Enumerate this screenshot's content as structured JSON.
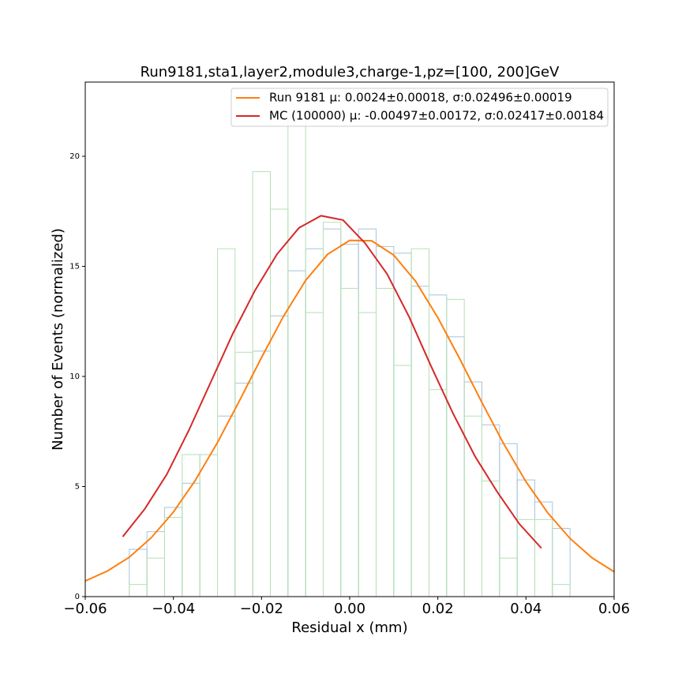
{
  "chart_data": {
    "type": "histogram",
    "title": "Run9181,sta1,layer2,module3,charge-1,pz=[100, 200]GeV",
    "x_label": "Residual x (mm)",
    "y_label": "Number of Events (normalized)",
    "xlim": [
      -0.06,
      0.06
    ],
    "ylim": [
      0,
      23.37
    ],
    "xticks": [
      {
        "value": -0.06,
        "label": "−0.06"
      },
      {
        "value": -0.04,
        "label": "−0.04"
      },
      {
        "value": -0.02,
        "label": "−0.02"
      },
      {
        "value": 0,
        "label": "0.00"
      },
      0.02,
      0.04,
      0.06
    ],
    "yticks": [
      0,
      5,
      10,
      15,
      20
    ],
    "bins": [
      -0.05,
      -0.046,
      -0.042,
      -0.038,
      -0.034,
      -0.03,
      -0.026,
      -0.022,
      -0.018,
      -0.014,
      -0.01,
      -0.006,
      -0.002,
      0.002,
      0.006,
      0.01,
      0.014,
      0.018,
      0.022,
      0.026,
      0.03,
      0.034,
      0.038,
      0.042,
      0.046,
      0.05
    ],
    "histograms": [
      {
        "color": "#a6c4dc",
        "values": [
          2.15,
          2.95,
          4.05,
          5.15,
          6.45,
          8.2,
          9.7,
          11.15,
          12.75,
          14.8,
          15.8,
          16.7,
          16.0,
          16.7,
          15.9,
          15.6,
          14.1,
          13.7,
          11.8,
          9.75,
          7.8,
          6.95,
          5.3,
          4.3,
          3.1
        ]
      },
      {
        "color": "#b4e0b4",
        "values": [
          0.55,
          1.75,
          3.6,
          6.45,
          6.45,
          15.8,
          11.1,
          19.3,
          17.6,
          21.7,
          12.9,
          17.0,
          14.0,
          12.9,
          14.0,
          10.5,
          15.8,
          9.4,
          13.5,
          8.2,
          5.25,
          1.75,
          3.5,
          3.5,
          0.55
        ]
      }
    ],
    "series": [
      {
        "name": "Run 9181 μ: 0.0024±0.00018, σ:0.02496±0.00019",
        "color": "#ff7f0e",
        "x": [
          -0.06,
          -0.055,
          -0.05,
          -0.045,
          -0.04,
          -0.035,
          -0.03,
          -0.025,
          -0.02,
          -0.015,
          -0.01,
          -0.005,
          0,
          0.005,
          0.01,
          0.015,
          0.02,
          0.025,
          0.03,
          0.035,
          0.04,
          0.045,
          0.05,
          0.055,
          0.06
        ],
        "values": [
          0.71,
          1.16,
          1.79,
          2.68,
          3.84,
          5.29,
          7.0,
          8.9,
          10.86,
          12.74,
          14.36,
          15.55,
          16.18,
          16.16,
          15.51,
          14.31,
          12.67,
          10.79,
          8.82,
          6.92,
          5.22,
          3.79,
          2.64,
          1.76,
          1.13
        ]
      },
      {
        "name": "MC (100000) μ: -0.00497±0.00172, σ:0.02417±0.00184",
        "color": "#d62728",
        "x": [
          -0.0515,
          -0.0465,
          -0.0415,
          -0.0365,
          -0.0315,
          -0.0265,
          -0.0215,
          -0.0165,
          -0.0115,
          -0.0065,
          -0.0015,
          0.0035,
          0.0085,
          0.0135,
          0.0185,
          0.0235,
          0.0285,
          0.0335,
          0.0385,
          0.0435
        ],
        "values": [
          2.72,
          3.98,
          5.55,
          7.55,
          9.75,
          11.95,
          13.9,
          15.55,
          16.75,
          17.3,
          17.1,
          16.05,
          14.65,
          12.7,
          10.45,
          8.3,
          6.35,
          4.75,
          3.3,
          2.2
        ]
      }
    ],
    "legend": "upper right"
  }
}
